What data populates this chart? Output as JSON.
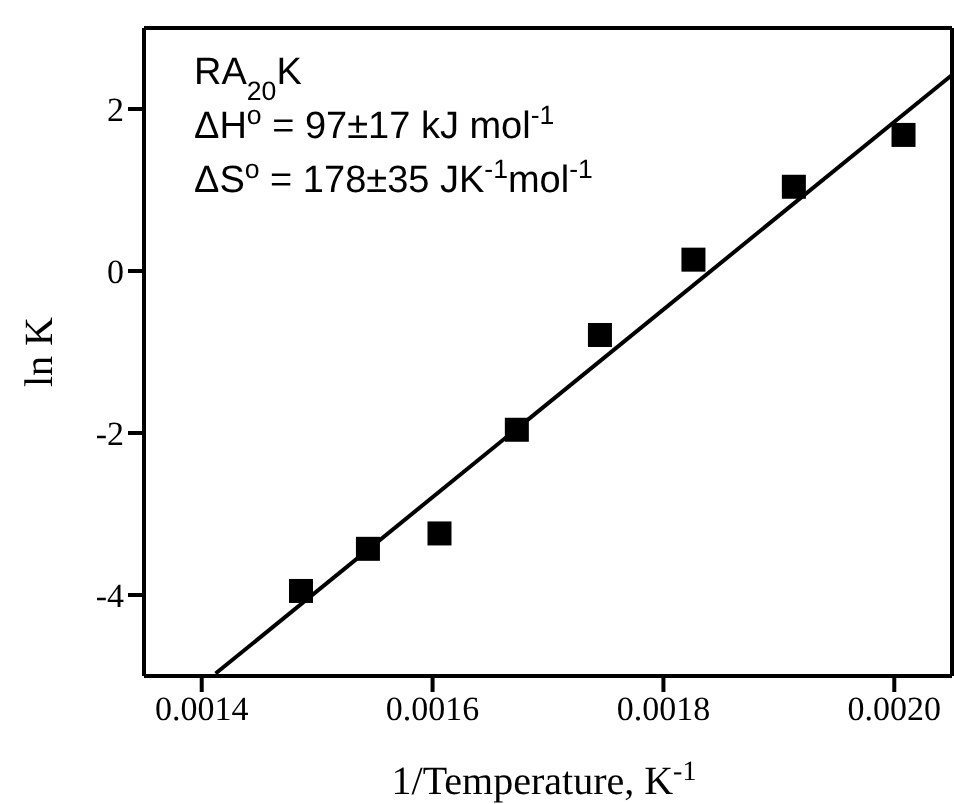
{
  "chart_data": {
    "type": "scatter",
    "xlabel": "1/Temperature, K$^{-1}$",
    "ylabel": "ln K",
    "annotations": [
      "RA$_{20}$K",
      "ΔH$^{o}$ = 97±17 kJ mol$^{-1}$",
      "ΔS$^{o}$ = 178±35 JK$^{-1}$mol$^{-1}$"
    ],
    "x": [
      0.001486,
      0.001544,
      0.001606,
      0.001673,
      0.001745,
      0.001826,
      0.001913,
      0.002008
    ],
    "series": [
      {
        "color": "#000000",
        "marker": "square",
        "values": [
          -3.95,
          -3.43,
          -3.24,
          -1.96,
          -0.79,
          0.14,
          1.04,
          1.68
        ]
      },
      {
        "type": "line",
        "color": "#000000",
        "x": [
          0.001412,
          0.00205
        ],
        "values": [
          -4.97,
          2.42
        ],
        "marker": "none",
        "line_style": "solid"
      }
    ],
    "xlim": [
      0.00135,
      0.00205
    ],
    "ylim": [
      -5,
      3
    ],
    "xticks": [
      {
        "value": 0.0014,
        "label": "0.0014"
      },
      {
        "value": 0.0016,
        "label": "0.0016"
      },
      {
        "value": 0.0018,
        "label": "0.0018"
      },
      {
        "value": 0.002,
        "label": "0.0020"
      }
    ],
    "yticks": [
      -4,
      -2,
      0,
      2
    ],
    "grid": false,
    "legend": false
  }
}
